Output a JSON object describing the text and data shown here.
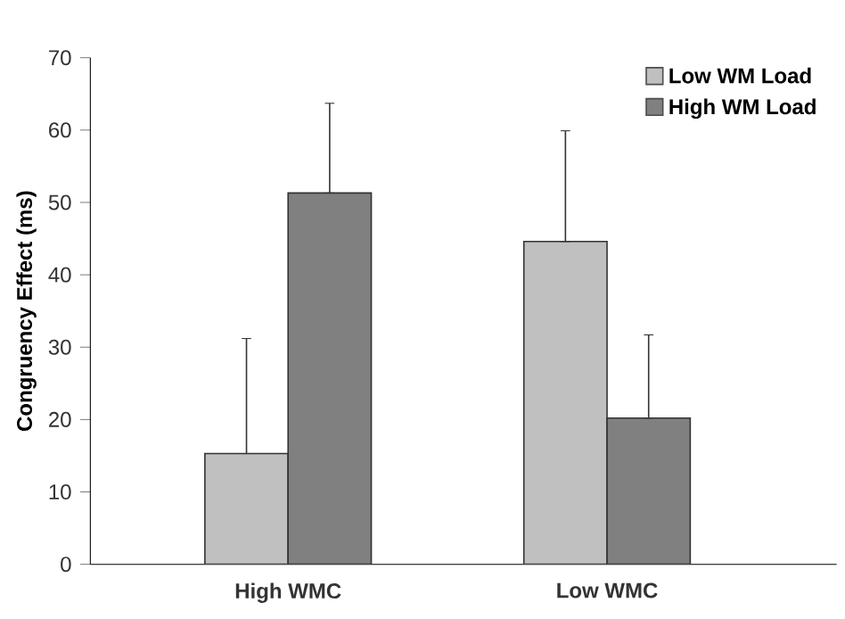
{
  "chart_data": {
    "type": "bar",
    "ylabel": "Congruency Effect (ms)",
    "categories": [
      "High WMC",
      "Low WMC"
    ],
    "series": [
      {
        "name": "Low WM Load",
        "color": "#c0c0c0",
        "values": [
          15.3,
          44.6
        ],
        "errors": [
          [
            15.3,
            31.2
          ],
          [
            44.6,
            59.9
          ]
        ]
      },
      {
        "name": "High WM Load",
        "color": "#808080",
        "values": [
          51.3,
          20.2
        ],
        "errors": [
          [
            51.3,
            63.7
          ],
          [
            20.2,
            31.7
          ]
        ]
      }
    ],
    "ylim": [
      0,
      70
    ],
    "yticks": [
      0,
      10,
      20,
      30,
      40,
      50,
      60,
      70
    ],
    "legend": "top right"
  }
}
